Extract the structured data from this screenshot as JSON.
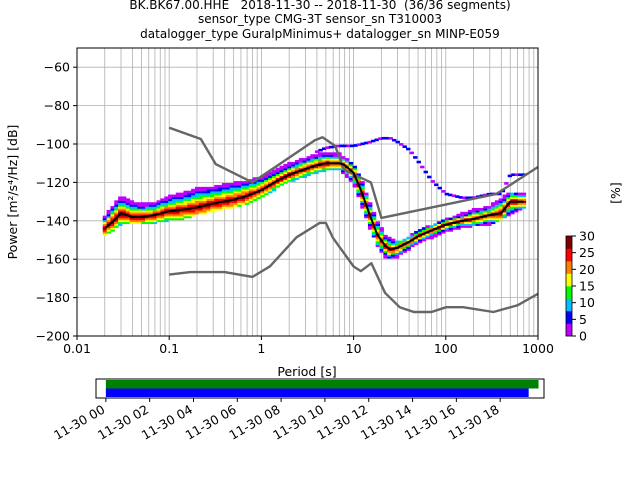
{
  "title_lines": [
    "BK.BK67.00.HHE   2018-11-30 -- 2018-11-30  (36/36 segments)",
    "sensor_type CMG-3T sensor_sn T310003",
    "datalogger_type GuralpMinimus+ datalogger_sn MINP-E059"
  ],
  "chart_data": {
    "type": "heatmap",
    "xlabel": "Period [s]",
    "ylabel": "Power [m²/s⁴/Hz] [dB]",
    "xscale": "log",
    "xlim": [
      0.01,
      1000
    ],
    "ylim": [
      -200,
      -50
    ],
    "xticks": [
      0.01,
      0.1,
      1,
      10,
      100,
      1000
    ],
    "xtick_labels": [
      "0.01",
      "0.1",
      "1",
      "10",
      "100",
      "1000"
    ],
    "yticks": [
      -200,
      -180,
      -160,
      -140,
      -120,
      -100,
      -80,
      -60
    ],
    "ytick_labels": [
      "−200",
      "−180",
      "−160",
      "−140",
      "−120",
      "−100",
      "−80",
      "−60"
    ],
    "grid": true,
    "colorbar": {
      "label": "[%]",
      "min": 0,
      "max": 30,
      "ticks": [
        0,
        5,
        10,
        15,
        20,
        25,
        30
      ],
      "colors": [
        "#ffffff",
        "#bf00ff",
        "#0000ff",
        "#00bfff",
        "#00ff00",
        "#ffff00",
        "#ff8000",
        "#ff0000",
        "#7f0000"
      ]
    },
    "mean_curve": {
      "color": "#000000",
      "x": [
        0.02,
        0.025,
        0.03,
        0.04,
        0.05,
        0.07,
        0.1,
        0.15,
        0.2,
        0.3,
        0.5,
        0.7,
        1,
        1.5,
        2,
        3,
        4,
        5,
        6,
        7,
        8,
        10,
        12,
        15,
        18,
        22,
        25,
        30,
        40,
        50,
        70,
        100,
        150,
        200,
        300,
        400,
        500,
        700
      ],
      "y": [
        -144,
        -140,
        -136,
        -138,
        -138,
        -137,
        -135,
        -134,
        -133,
        -131,
        -129,
        -127,
        -124,
        -119,
        -116,
        -113,
        -111,
        -110,
        -110,
        -110,
        -111,
        -115,
        -124,
        -137,
        -147,
        -153,
        -155,
        -154,
        -151,
        -148,
        -145,
        -142,
        -140,
        -139,
        -137,
        -136,
        -130,
        -130
      ]
    },
    "density_band": {
      "x": [
        0.02,
        0.03,
        0.04,
        0.05,
        0.07,
        0.1,
        0.15,
        0.2,
        0.3,
        0.5,
        0.7,
        1,
        1.5,
        2,
        3,
        4,
        5,
        7,
        8,
        10,
        12,
        15,
        18,
        22,
        25,
        30,
        40,
        50,
        70,
        100,
        150,
        200,
        300,
        500,
        700
      ],
      "upper": [
        -138,
        -128,
        -131,
        -132,
        -131,
        -128,
        -126,
        -124,
        -123,
        -121,
        -120,
        -118,
        -114,
        -111,
        -108,
        -106,
        -105,
        -106,
        -108,
        -111,
        -119,
        -131,
        -141,
        -148,
        -150,
        -152,
        -149,
        -146,
        -143,
        -140,
        -137,
        -135,
        -133,
        -126,
        -126
      ],
      "lower": [
        -147,
        -141,
        -141,
        -141,
        -140,
        -139,
        -138,
        -136,
        -134,
        -132,
        -130,
        -127,
        -122,
        -119,
        -116,
        -114,
        -113,
        -113,
        -115,
        -120,
        -130,
        -143,
        -152,
        -158,
        -159,
        -158,
        -154,
        -151,
        -148,
        -145,
        -143,
        -142,
        -141,
        -136,
        -133
      ]
    },
    "outlier_curve": {
      "x": [
        4,
        5,
        7,
        10,
        15,
        20,
        25,
        30,
        40,
        50,
        70,
        100,
        150,
        200,
        300,
        400,
        500,
        700
      ],
      "y": [
        -104,
        -102,
        -101,
        -101,
        -99,
        -97,
        -97,
        -99,
        -103,
        -109,
        -119,
        -126,
        -128,
        -128,
        -126,
        -126,
        -116,
        -116
      ]
    },
    "noise_model_high": {
      "color": "#666666",
      "x": [
        0.1,
        0.22,
        0.32,
        0.8,
        3.8,
        4.6,
        6.3,
        7.9,
        15.4,
        20,
        354.8,
        1000
      ],
      "y": [
        -91.5,
        -97.4,
        -110.5,
        -120,
        -98,
        -96.5,
        -101,
        -113.5,
        -120,
        -138.5,
        -126,
        -112
      ]
    },
    "noise_model_low": {
      "color": "#666666",
      "x": [
        0.1,
        0.17,
        0.4,
        0.8,
        1.24,
        2.4,
        4.3,
        5,
        6,
        10,
        12,
        15.6,
        21.9,
        31.6,
        45,
        70,
        101,
        154,
        328,
        600,
        1000
      ],
      "y": [
        -168,
        -166.7,
        -166.7,
        -169.2,
        -163.7,
        -148.6,
        -141.1,
        -141.1,
        -149,
        -163.8,
        -166.2,
        -162.1,
        -177.5,
        -185,
        -187.5,
        -187.5,
        -185,
        -185,
        -187.5,
        -184,
        -178
      ]
    }
  },
  "timeline": {
    "tick_labels": [
      "11-30 00",
      "11-30 02",
      "11-30 04",
      "11-30 06",
      "11-30 08",
      "11-30 10",
      "11-30 12",
      "11-30 14",
      "11-30 16",
      "11-30 18"
    ],
    "range_hours": [
      -0.45,
      20.0
    ],
    "bars": [
      {
        "color": "#008000",
        "start_hour": 0.0,
        "end_hour": 19.75
      },
      {
        "color": "#0000ff",
        "start_hour": 0.0,
        "end_hour": 19.3
      }
    ]
  }
}
